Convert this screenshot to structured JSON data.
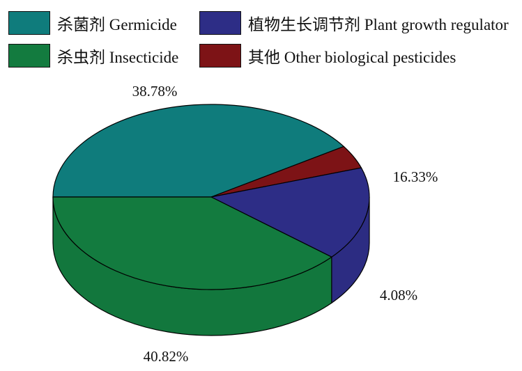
{
  "legend": [
    {
      "label": "杀菌剂 Germicide",
      "color": "#0f7c7c"
    },
    {
      "label": "植物生长调节剂 Plant growth regulator",
      "color": "#2d2d86"
    },
    {
      "label": "杀虫剂 Insecticide",
      "color": "#137b3f"
    },
    {
      "label": "其他 Other biological pesticides",
      "color": "#7d1316"
    }
  ],
  "chart_data": {
    "type": "pie",
    "style": "3d",
    "slices": [
      {
        "label": "杀菌剂 Germicide",
        "value": 40.82,
        "display": "40.82%",
        "color": "#0f7c7c"
      },
      {
        "label": "其他 Other biological pesticides",
        "value": 4.08,
        "display": "4.08%",
        "color": "#7d1316"
      },
      {
        "label": "植物生长调节剂 Plant growth regulator",
        "value": 16.33,
        "display": "16.33%",
        "color": "#2d2d86"
      },
      {
        "label": "杀虫剂 Insecticide",
        "value": 38.78,
        "display": "38.78%",
        "color": "#137b3f"
      }
    ],
    "legend_position": "top"
  }
}
